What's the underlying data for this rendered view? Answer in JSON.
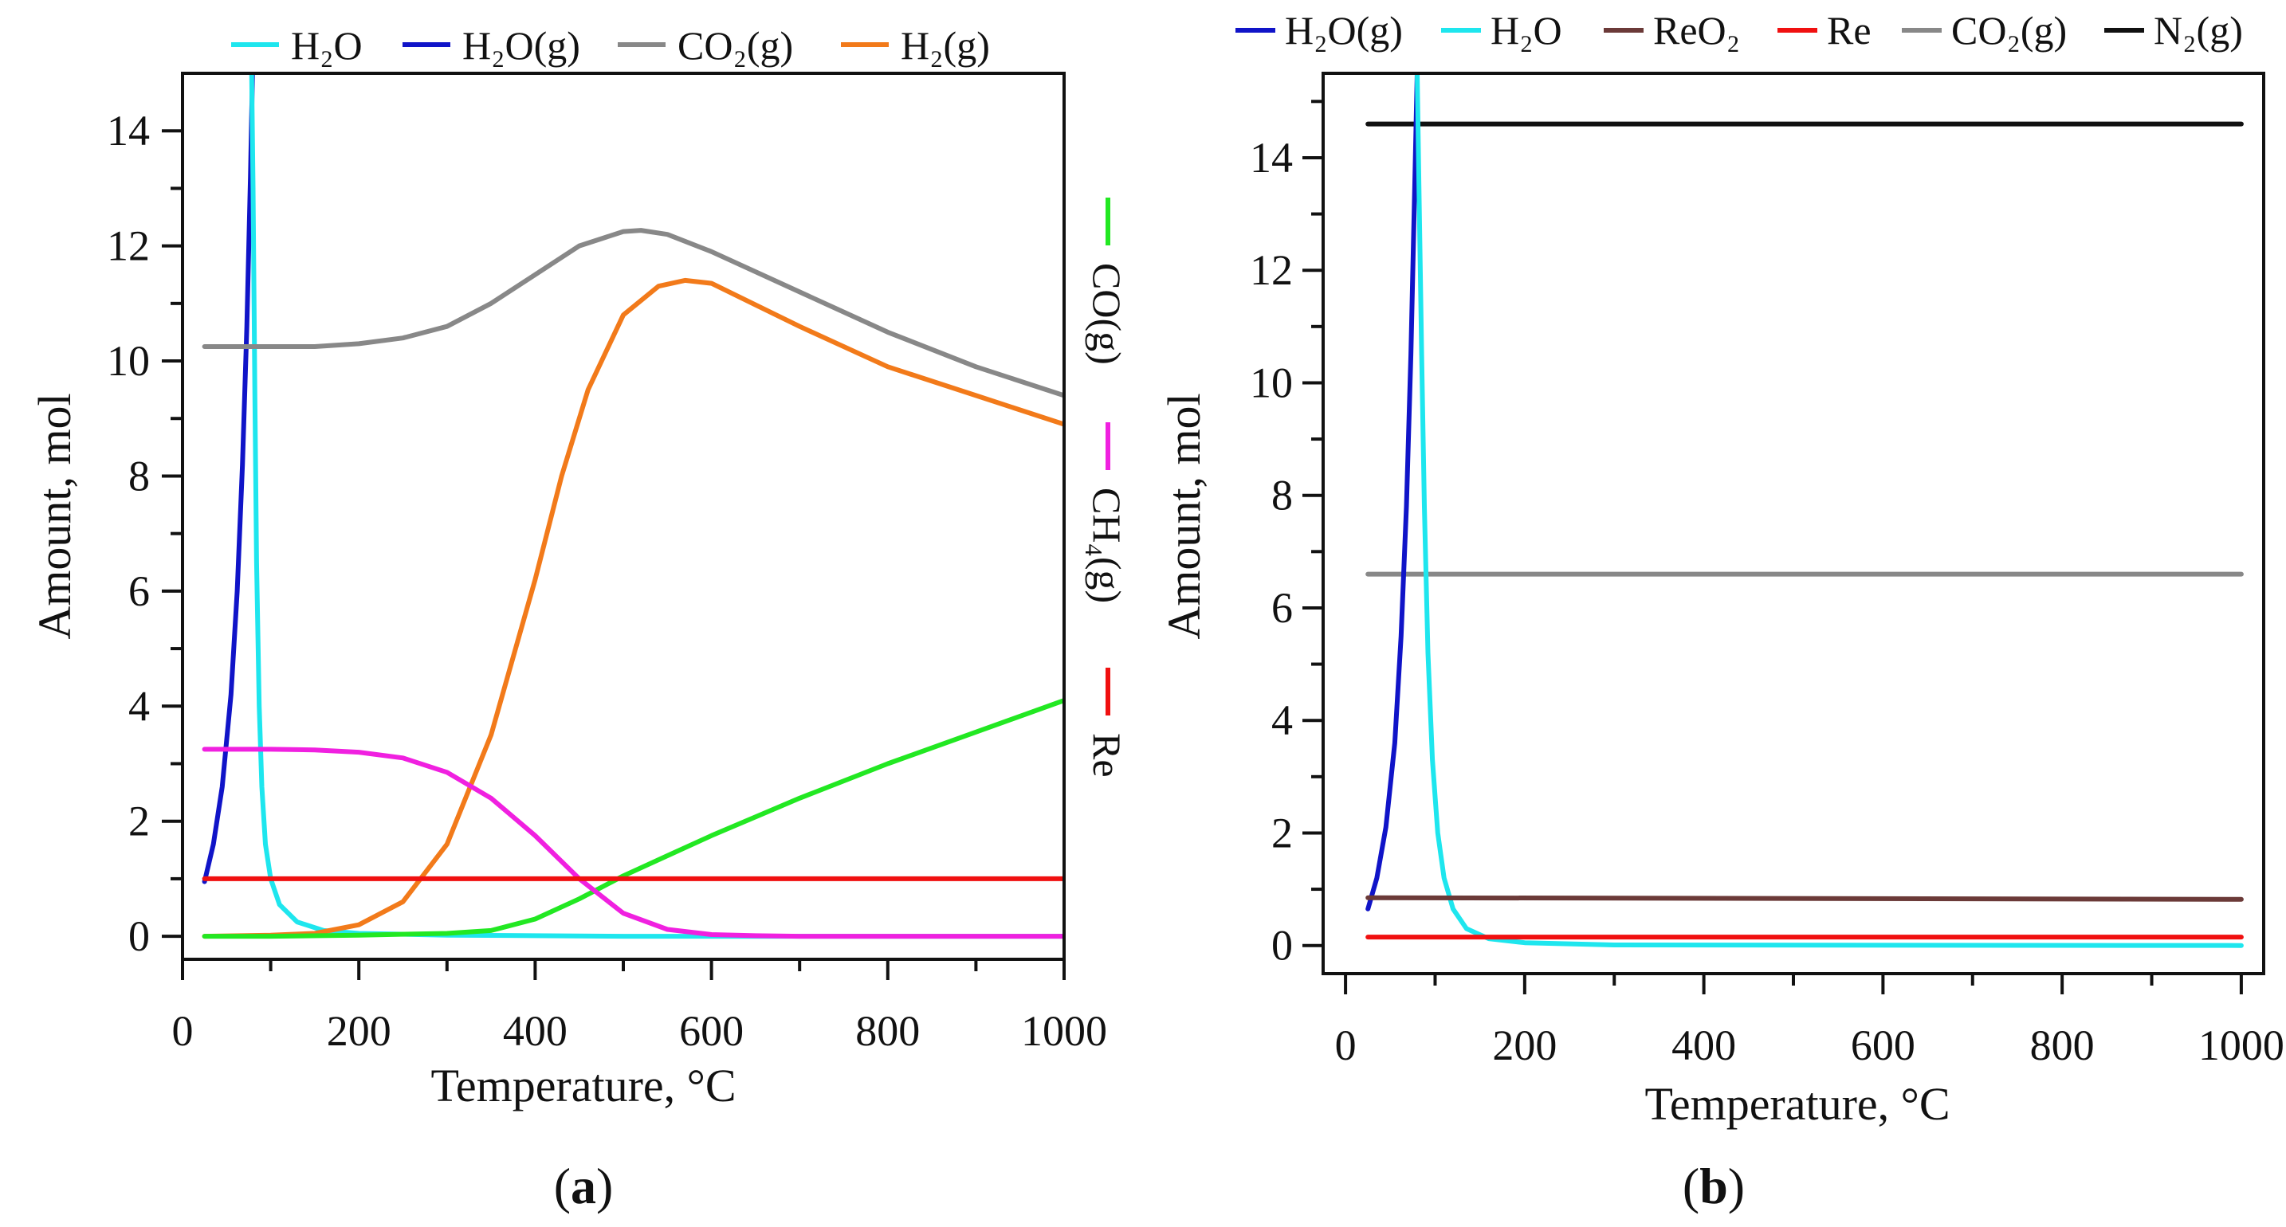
{
  "chart_data": [
    {
      "type": "line",
      "panel": "a",
      "caption_prefix": "(",
      "caption_letter": "a",
      "caption_suffix": ")",
      "xlabel": "Temperature, °C",
      "ylabel": "Amount, mol",
      "xlim": [
        0,
        1000
      ],
      "ylim": [
        -0.4,
        15
      ],
      "xticks": [
        0,
        200,
        400,
        600,
        800,
        1000
      ],
      "yticks": [
        0,
        2,
        4,
        6,
        8,
        10,
        12,
        14
      ],
      "legend_top": [
        {
          "label": "H₂O",
          "color": "#1ee6ee"
        },
        {
          "label": "H₂O(g)",
          "color": "#1014c8"
        },
        {
          "label": "CO₂(g)",
          "color": "#888888"
        },
        {
          "label": "H₂(g)",
          "color": "#f27a1a"
        }
      ],
      "legend_side": [
        {
          "label": "CO(g)",
          "color": "#22e822"
        },
        {
          "label": "CH₄(g)",
          "color": "#f020e0"
        },
        {
          "label": "Re",
          "color": "#f01010"
        }
      ],
      "series": [
        {
          "name": "H₂O(g)",
          "color": "#1014c8",
          "x": [
            25,
            35,
            45,
            55,
            62,
            68,
            73,
            77,
            80
          ],
          "values": [
            0.95,
            1.6,
            2.6,
            4.2,
            6.0,
            8.2,
            10.6,
            13.2,
            15.5
          ]
        },
        {
          "name": "H₂O",
          "color": "#1ee6ee",
          "x": [
            78,
            80,
            82,
            84,
            87,
            90,
            94,
            100,
            110,
            130,
            160,
            200,
            300,
            500,
            1000
          ],
          "values": [
            15.5,
            13,
            9.5,
            6.5,
            4.0,
            2.6,
            1.6,
            1.0,
            0.55,
            0.25,
            0.1,
            0.05,
            0.02,
            0.0,
            0.0
          ]
        },
        {
          "name": "CO₂(g)",
          "color": "#888888",
          "x": [
            25,
            100,
            150,
            200,
            250,
            300,
            350,
            400,
            450,
            500,
            520,
            550,
            600,
            700,
            800,
            900,
            1000
          ],
          "values": [
            10.25,
            10.25,
            10.25,
            10.3,
            10.4,
            10.6,
            11.0,
            11.5,
            12.0,
            12.25,
            12.27,
            12.2,
            11.9,
            11.2,
            10.5,
            9.9,
            9.4
          ]
        },
        {
          "name": "H₂(g)",
          "color": "#f27a1a",
          "x": [
            25,
            100,
            150,
            200,
            250,
            300,
            350,
            400,
            430,
            460,
            500,
            540,
            570,
            600,
            700,
            800,
            900,
            1000
          ],
          "values": [
            0.0,
            0.02,
            0.05,
            0.2,
            0.6,
            1.6,
            3.5,
            6.2,
            8.0,
            9.5,
            10.8,
            11.3,
            11.4,
            11.35,
            10.6,
            9.9,
            9.4,
            8.9
          ]
        },
        {
          "name": "CO(g)",
          "color": "#22e822",
          "x": [
            25,
            100,
            200,
            300,
            350,
            400,
            450,
            500,
            550,
            600,
            700,
            800,
            900,
            1000
          ],
          "values": [
            0.0,
            0.0,
            0.02,
            0.05,
            0.1,
            0.3,
            0.65,
            1.05,
            1.4,
            1.75,
            2.4,
            3.0,
            3.55,
            4.1
          ]
        },
        {
          "name": "CH₄(g)",
          "color": "#f020e0",
          "x": [
            25,
            100,
            150,
            200,
            250,
            300,
            350,
            400,
            450,
            500,
            550,
            600,
            650,
            700,
            1000
          ],
          "values": [
            3.25,
            3.25,
            3.24,
            3.2,
            3.1,
            2.85,
            2.4,
            1.75,
            1.0,
            0.4,
            0.12,
            0.03,
            0.01,
            0.0,
            0.0
          ]
        },
        {
          "name": "Re",
          "color": "#f01010",
          "x": [
            25,
            1000
          ],
          "values": [
            1.0,
            1.0
          ]
        }
      ]
    },
    {
      "type": "line",
      "panel": "b",
      "caption_prefix": "(",
      "caption_letter": "b",
      "caption_suffix": ")",
      "xlabel": "Temperature, °C",
      "ylabel": "Amount, mol",
      "xlim": [
        -25,
        1025
      ],
      "ylim": [
        -0.5,
        15.5
      ],
      "xticks": [
        0,
        200,
        400,
        600,
        800,
        1000
      ],
      "yticks": [
        0,
        2,
        4,
        6,
        8,
        10,
        12,
        14
      ],
      "legend_top": [
        {
          "label": "H₂O(g)",
          "color": "#1014c8"
        },
        {
          "label": "H₂O",
          "color": "#1ee6ee"
        },
        {
          "label": "ReO₂",
          "color": "#6b3a38"
        },
        {
          "label": "Re",
          "color": "#f01010"
        },
        {
          "label": "CO₂(g)",
          "color": "#888888"
        },
        {
          "label": "N₂(g)",
          "color": "#111111"
        }
      ],
      "series": [
        {
          "name": "N₂(g)",
          "color": "#111111",
          "x": [
            25,
            1000
          ],
          "values": [
            14.6,
            14.6
          ]
        },
        {
          "name": "CO₂(g)",
          "color": "#888888",
          "x": [
            25,
            1000
          ],
          "values": [
            6.6,
            6.6
          ]
        },
        {
          "name": "H₂O(g)",
          "color": "#1014c8",
          "x": [
            25,
            35,
            45,
            55,
            62,
            68,
            73,
            77,
            80
          ],
          "values": [
            0.65,
            1.2,
            2.1,
            3.6,
            5.5,
            7.8,
            10.5,
            13.3,
            15.5
          ]
        },
        {
          "name": "H₂O",
          "color": "#1ee6ee",
          "x": [
            80,
            82,
            85,
            88,
            92,
            97,
            103,
            110,
            120,
            135,
            160,
            200,
            300,
            1000
          ],
          "values": [
            15.5,
            13.5,
            10.5,
            7.8,
            5.2,
            3.3,
            2.0,
            1.2,
            0.65,
            0.3,
            0.12,
            0.05,
            0.01,
            0.0
          ]
        },
        {
          "name": "ReO₂",
          "color": "#6b3a38",
          "x": [
            25,
            1000
          ],
          "values": [
            0.85,
            0.82
          ]
        },
        {
          "name": "Re",
          "color": "#f01010",
          "x": [
            25,
            1000
          ],
          "values": [
            0.15,
            0.15
          ]
        }
      ]
    }
  ]
}
